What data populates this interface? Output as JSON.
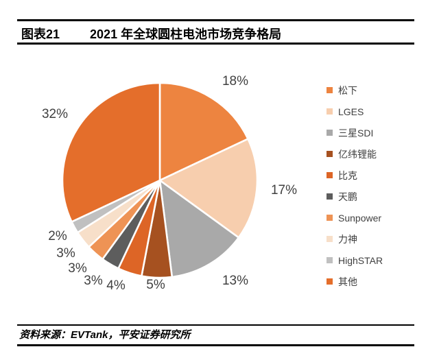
{
  "header": {
    "tag": "图表21",
    "title": "2021 年全球圆柱电池市场竞争格局"
  },
  "footer": {
    "source": "资料来源：EVTank，平安证券研究所"
  },
  "chart_data": {
    "type": "pie",
    "title": "2021 年全球圆柱电池市场竞争格局",
    "categories": [
      "松下",
      "LGES",
      "三星SDI",
      "亿纬锂能",
      "比克",
      "天鹏",
      "Sunpower",
      "力神",
      "HighSTAR",
      "其他"
    ],
    "values": [
      18,
      17,
      13,
      5,
      4,
      3,
      3,
      3,
      2,
      32
    ],
    "unit": "%",
    "colors": [
      "#ED8440",
      "#F7CEAE",
      "#A9A9A9",
      "#A65120",
      "#DD6526",
      "#5D5D5D",
      "#EE9355",
      "#F7DFC9",
      "#C0C0C0",
      "#E46E2B"
    ],
    "label_color": "#3F3F3F",
    "legend_position": "right",
    "start_angle_deg": 0,
    "direction": "clockwise",
    "slice_border_color": "#FFFFFF"
  }
}
